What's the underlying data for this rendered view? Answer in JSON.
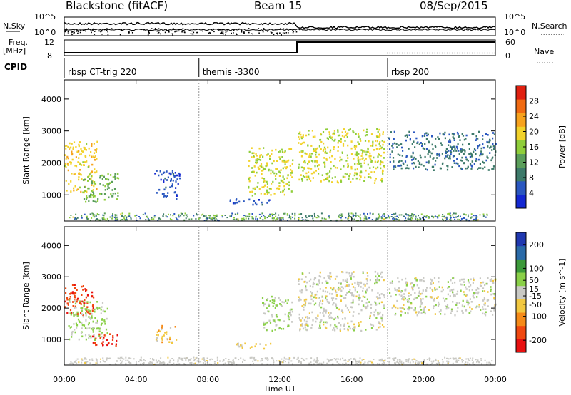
{
  "header": {
    "station": "Blackstone (fitACF)",
    "beam": "Beam 15",
    "date": "08/Sep/2015"
  },
  "panel_labels": {
    "nsky": "N.Sky",
    "freq": "Freq.",
    "mhz": "[MHz]",
    "cpid": "CPID",
    "nsearch": "N.Search",
    "nave": "Nave"
  },
  "scales": {
    "nsky_top": "10^5",
    "nsky_bottom": "10^0",
    "freq_top": "12",
    "freq_bottom": "8",
    "nave_top": "60",
    "nave_bottom": "0"
  },
  "cpid_segments": [
    {
      "label": "rbsp CT-trig 220",
      "start_hour": 0
    },
    {
      "label": "themis -3300",
      "start_hour": 7.5
    },
    {
      "label": "rbsp 200",
      "start_hour": 18
    }
  ],
  "colors": {
    "power": [
      "#1428d2",
      "#2a57c0",
      "#3d7a6a",
      "#5a9e5a",
      "#8fce3a",
      "#f2d22a",
      "#f7a21d",
      "#f06a12",
      "#e02010"
    ],
    "velocity": [
      "#e81010",
      "#f04810",
      "#f58a18",
      "#f2c840",
      "#c9c9c4",
      "#8ad048",
      "#3c9a3a",
      "#2a6aa8",
      "#2038b0"
    ]
  },
  "chart_data": [
    {
      "type": "heatmap",
      "title": "",
      "xlabel": "Time UT",
      "ylabel": "Slant Range [km]",
      "xlim": [
        0,
        24
      ],
      "ylim": [
        180,
        4600
      ],
      "xticks": [
        "00:00",
        "04:00",
        "08:00",
        "12:00",
        "16:00",
        "20:00",
        "00:00"
      ],
      "yticks": [
        1000,
        2000,
        3000,
        4000
      ],
      "colorbar": {
        "label": "Power [dB]",
        "ticks": [
          4,
          8,
          12,
          16,
          20,
          24,
          28
        ],
        "range": [
          0,
          32
        ]
      },
      "echo_regions": [
        {
          "t0": 0.0,
          "t1": 1.8,
          "r0": 1100,
          "r1": 2700,
          "value": 20
        },
        {
          "t0": 1.0,
          "t1": 3.0,
          "r0": 800,
          "r1": 1700,
          "value": 14
        },
        {
          "t0": 5.0,
          "t1": 6.4,
          "r0": 900,
          "r1": 1800,
          "value": 5
        },
        {
          "t0": 9.2,
          "t1": 11.5,
          "r0": 700,
          "r1": 900,
          "value": 5
        },
        {
          "t0": 10.2,
          "t1": 12.7,
          "r0": 1000,
          "r1": 2500,
          "value": 18
        },
        {
          "t0": 13.0,
          "t1": 17.8,
          "r0": 1400,
          "r1": 3100,
          "value": 18
        },
        {
          "t0": 18.0,
          "t1": 24.0,
          "r0": 1800,
          "r1": 3000,
          "value": 8
        }
      ]
    },
    {
      "type": "heatmap",
      "title": "",
      "xlabel": "Time UT",
      "ylabel": "Slant Range [km]",
      "xlim": [
        0,
        24
      ],
      "ylim": [
        180,
        4600
      ],
      "xticks": [
        "00:00",
        "04:00",
        "08:00",
        "12:00",
        "16:00",
        "20:00",
        "00:00"
      ],
      "yticks": [
        1000,
        2000,
        3000,
        4000
      ],
      "colorbar": {
        "label": "Velocity [m s^-1]",
        "ticks": [
          -200,
          -100,
          -50,
          -15,
          15,
          50,
          100,
          200
        ],
        "range": [
          -250,
          250
        ]
      },
      "echo_regions": [
        {
          "t0": 0.0,
          "t1": 1.6,
          "r0": 1800,
          "r1": 2800,
          "value": -180
        },
        {
          "t0": 0.2,
          "t1": 2.4,
          "r0": 1000,
          "r1": 2300,
          "value": 40
        },
        {
          "t0": 1.5,
          "t1": 3.0,
          "r0": 800,
          "r1": 1200,
          "value": -200
        },
        {
          "t0": 5.0,
          "t1": 6.2,
          "r0": 900,
          "r1": 1500,
          "value": -60
        },
        {
          "t0": 9.5,
          "t1": 11.5,
          "r0": 700,
          "r1": 900,
          "value": -40
        },
        {
          "t0": 11.0,
          "t1": 12.7,
          "r0": 1300,
          "r1": 2400,
          "value": 30
        },
        {
          "t0": 13.0,
          "t1": 17.8,
          "r0": 1300,
          "r1": 3200,
          "value": 0
        },
        {
          "t0": 18.0,
          "t1": 24.0,
          "r0": 1800,
          "r1": 3000,
          "value": 0
        }
      ]
    }
  ]
}
